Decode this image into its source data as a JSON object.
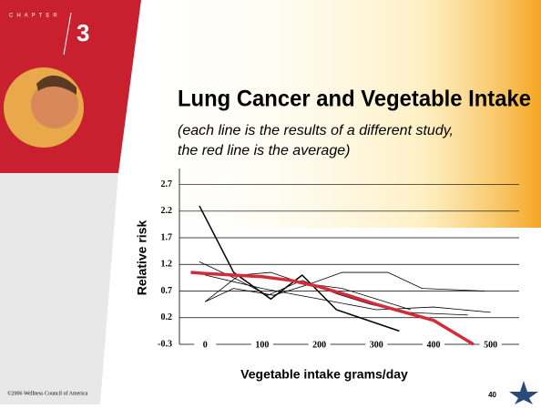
{
  "chapter": "CHAPTER",
  "chapter_number": "3",
  "footer": "©2006 Wellness Council of America",
  "page_number": "40",
  "chart_data": {
    "type": "line",
    "title": "Lung Cancer and Vegetable Intake",
    "subtitle": [
      "(each line is the results of a different study,",
      "the red line is the average)"
    ],
    "x_label": "Vegetable intake grams/day",
    "y_label": "Relative risk",
    "xlim": [
      -45,
      550
    ],
    "xticks": [
      0,
      100,
      200,
      300,
      400,
      500
    ],
    "ylim": [
      -0.3,
      3.0
    ],
    "yticks": [
      -0.3,
      0.2,
      0.7,
      1.2,
      1.7,
      2.2,
      2.7
    ],
    "grid": true,
    "series": [
      {
        "color": "#000000",
        "width": 1.5,
        "x": [
          -10,
          50,
          115,
          170,
          230,
          340
        ],
        "values": [
          2.3,
          1.05,
          0.55,
          1.0,
          0.35,
          -0.05
        ]
      },
      {
        "color": "#000000",
        "width": 0.8,
        "x": [
          -10,
          50,
          110,
          170,
          230,
          290,
          350,
          460
        ],
        "values": [
          1.25,
          0.95,
          0.62,
          0.9,
          0.65,
          0.45,
          0.3,
          0.25
        ]
      },
      {
        "color": "#000000",
        "width": 0.8,
        "x": [
          0,
          50,
          120,
          180,
          240,
          320,
          380,
          490
        ],
        "values": [
          0.5,
          0.75,
          0.62,
          0.82,
          1.05,
          1.05,
          0.75,
          0.7
        ]
      },
      {
        "color": "#000000",
        "width": 0.8,
        "x": [
          0,
          60,
          115,
          170,
          240,
          300,
          360
        ],
        "values": [
          0.5,
          1.0,
          1.05,
          0.85,
          0.75,
          0.55,
          0.35
        ]
      },
      {
        "color": "#000000",
        "width": 0.8,
        "x": [
          0,
          100,
          200,
          300,
          400,
          500
        ],
        "values": [
          1.0,
          0.75,
          0.55,
          0.35,
          0.4,
          0.3
        ]
      },
      {
        "color": "#d42a3a",
        "width": 3.5,
        "x": [
          -25,
          0,
          100,
          150,
          200,
          250,
          300,
          350,
          400,
          470
        ],
        "values": [
          1.05,
          1.03,
          0.97,
          0.9,
          0.78,
          0.62,
          0.45,
          0.3,
          0.15,
          -0.3
        ]
      }
    ]
  }
}
